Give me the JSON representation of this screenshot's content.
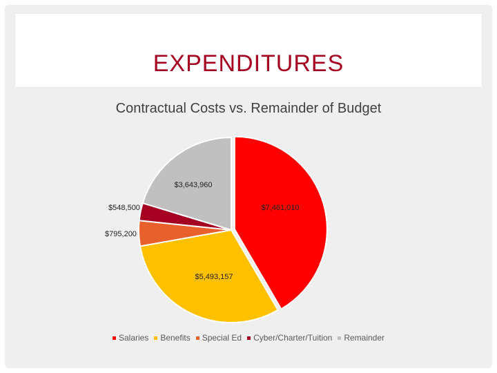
{
  "slide": {
    "title": "EXPENDITURES"
  },
  "chart_data": {
    "type": "pie",
    "title": "Contractual Costs vs. Remainder of Budget",
    "legend_position": "bottom",
    "categories": [
      "Salaries",
      "Benefits",
      "Special Ed",
      "Cyber/Charter/Tuition",
      "Remainder"
    ],
    "values": [
      7461010,
      5493157,
      795200,
      548500,
      3643960
    ],
    "labels": [
      "$7,461,010",
      "$5,493,157",
      "$795,200",
      "$548,500",
      "$3,643,960"
    ],
    "colors": [
      "#ff0000",
      "#ffc000",
      "#e8602c",
      "#a50021",
      "#c0c0c0"
    ],
    "exploded": "Salaries"
  }
}
